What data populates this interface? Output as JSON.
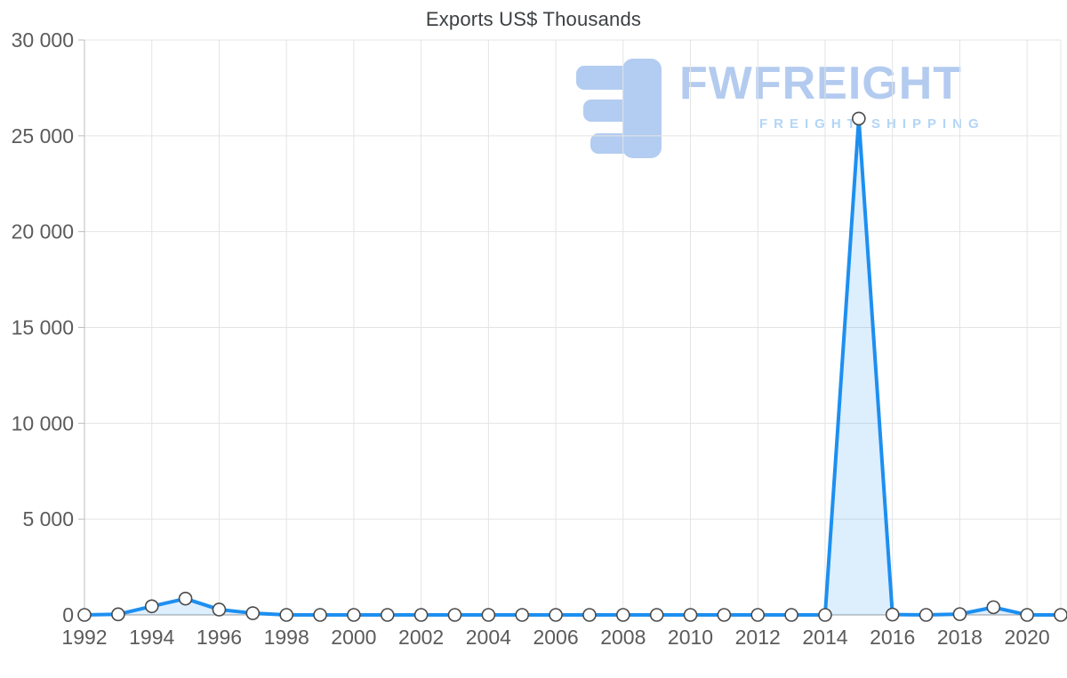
{
  "chart_data": {
    "type": "area",
    "title": "Exports US$ Thousands",
    "x": [
      1992,
      1993,
      1994,
      1995,
      1996,
      1997,
      1998,
      1999,
      2000,
      2001,
      2002,
      2003,
      2004,
      2005,
      2006,
      2007,
      2008,
      2009,
      2010,
      2011,
      2012,
      2013,
      2014,
      2015,
      2016,
      2017,
      2018,
      2019,
      2020,
      2021
    ],
    "values": [
      0,
      30,
      450,
      850,
      280,
      90,
      0,
      0,
      0,
      0,
      0,
      0,
      0,
      0,
      0,
      0,
      0,
      0,
      0,
      0,
      0,
      0,
      0,
      25900,
      20,
      0,
      40,
      400,
      0,
      0
    ],
    "series_name": "Exports US$ Thousands",
    "xlabel": "",
    "ylabel": "",
    "ylim": [
      0,
      30000
    ],
    "yticks": [
      0,
      5000,
      10000,
      15000,
      20000,
      25000,
      30000
    ],
    "ytick_labels": [
      "0",
      "5 000",
      "10 000",
      "15 000",
      "20 000",
      "25 000",
      "30 000"
    ],
    "xticks": [
      1992,
      1994,
      1996,
      1998,
      2000,
      2002,
      2004,
      2006,
      2008,
      2010,
      2012,
      2014,
      2016,
      2018,
      2020
    ],
    "xtick_labels": [
      "1992",
      "1994",
      "1996",
      "1998",
      "2000",
      "2002",
      "2004",
      "2006",
      "2008",
      "2010",
      "2012",
      "2014",
      "2016",
      "2018",
      "2020"
    ],
    "grid": true,
    "legend_position": "none",
    "colors": {
      "line": "#1d8ff0",
      "area": "rgba(29,143,240,0.15)",
      "marker_fill": "#ffffff",
      "marker_stroke": "#4a4a4a",
      "grid": "#e4e4e4",
      "axis": "#bdbdbd",
      "text": "#5b5b5b",
      "title": "#3c4043",
      "watermark": "#b4cbf0"
    },
    "watermark": {
      "brand": "FWFREIGHT",
      "tagline": "FREIGHT SHIPPING"
    }
  }
}
